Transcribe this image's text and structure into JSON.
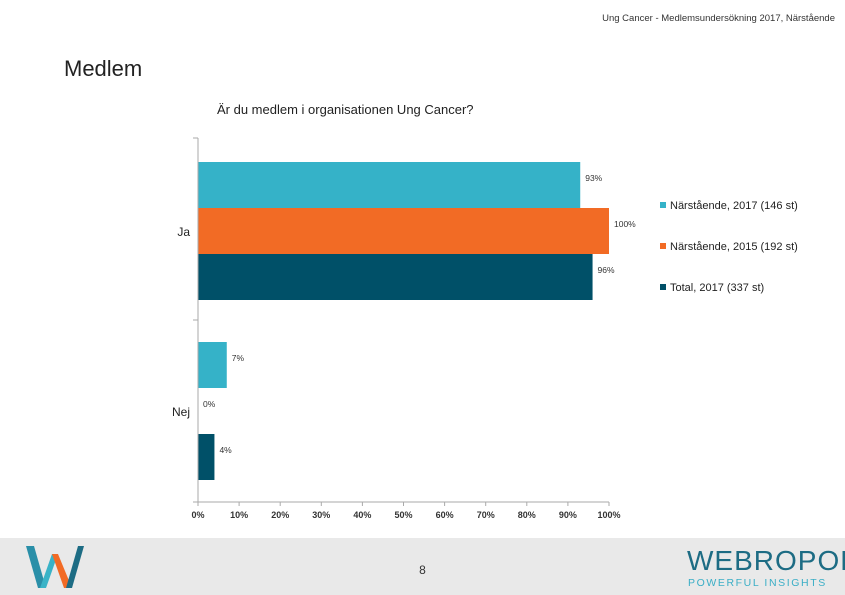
{
  "header": {
    "report_title": "Ung Cancer - Medlemsundersökning 2017, Närstående"
  },
  "slide": {
    "title": "Medlem",
    "page_number": "8"
  },
  "colors": {
    "series_1": "#35b2c8",
    "series_2": "#f26b25",
    "series_3": "#005068",
    "axis": "#aaaaaa",
    "footer_bg": "#e9e9e9"
  },
  "chart_data": {
    "type": "bar",
    "orientation": "horizontal",
    "title": "Är du medlem i organisationen Ung Cancer?",
    "categories": [
      "Ja",
      "Nej"
    ],
    "series": [
      {
        "name": "Närstående, 2017 (146 st)",
        "values": [
          93,
          7
        ],
        "labels": [
          "93%",
          "7%"
        ]
      },
      {
        "name": "Närstående, 2015 (192 st)",
        "values": [
          100,
          0
        ],
        "labels": [
          "100%",
          "0%"
        ]
      },
      {
        "name": "Total, 2017 (337 st)",
        "values": [
          96,
          4
        ],
        "labels": [
          "96%",
          "4%"
        ]
      }
    ],
    "x_ticks": [
      "0%",
      "10%",
      "20%",
      "30%",
      "40%",
      "50%",
      "60%",
      "70%",
      "80%",
      "90%",
      "100%"
    ],
    "xlim": [
      0,
      100
    ],
    "grid": false,
    "legend_position": "right"
  },
  "branding": {
    "left_logo_icon": "w-logo-icon",
    "right_logo_text": "WEBROPOL",
    "right_logo_tagline": "POWERFUL INSIGHTS"
  }
}
